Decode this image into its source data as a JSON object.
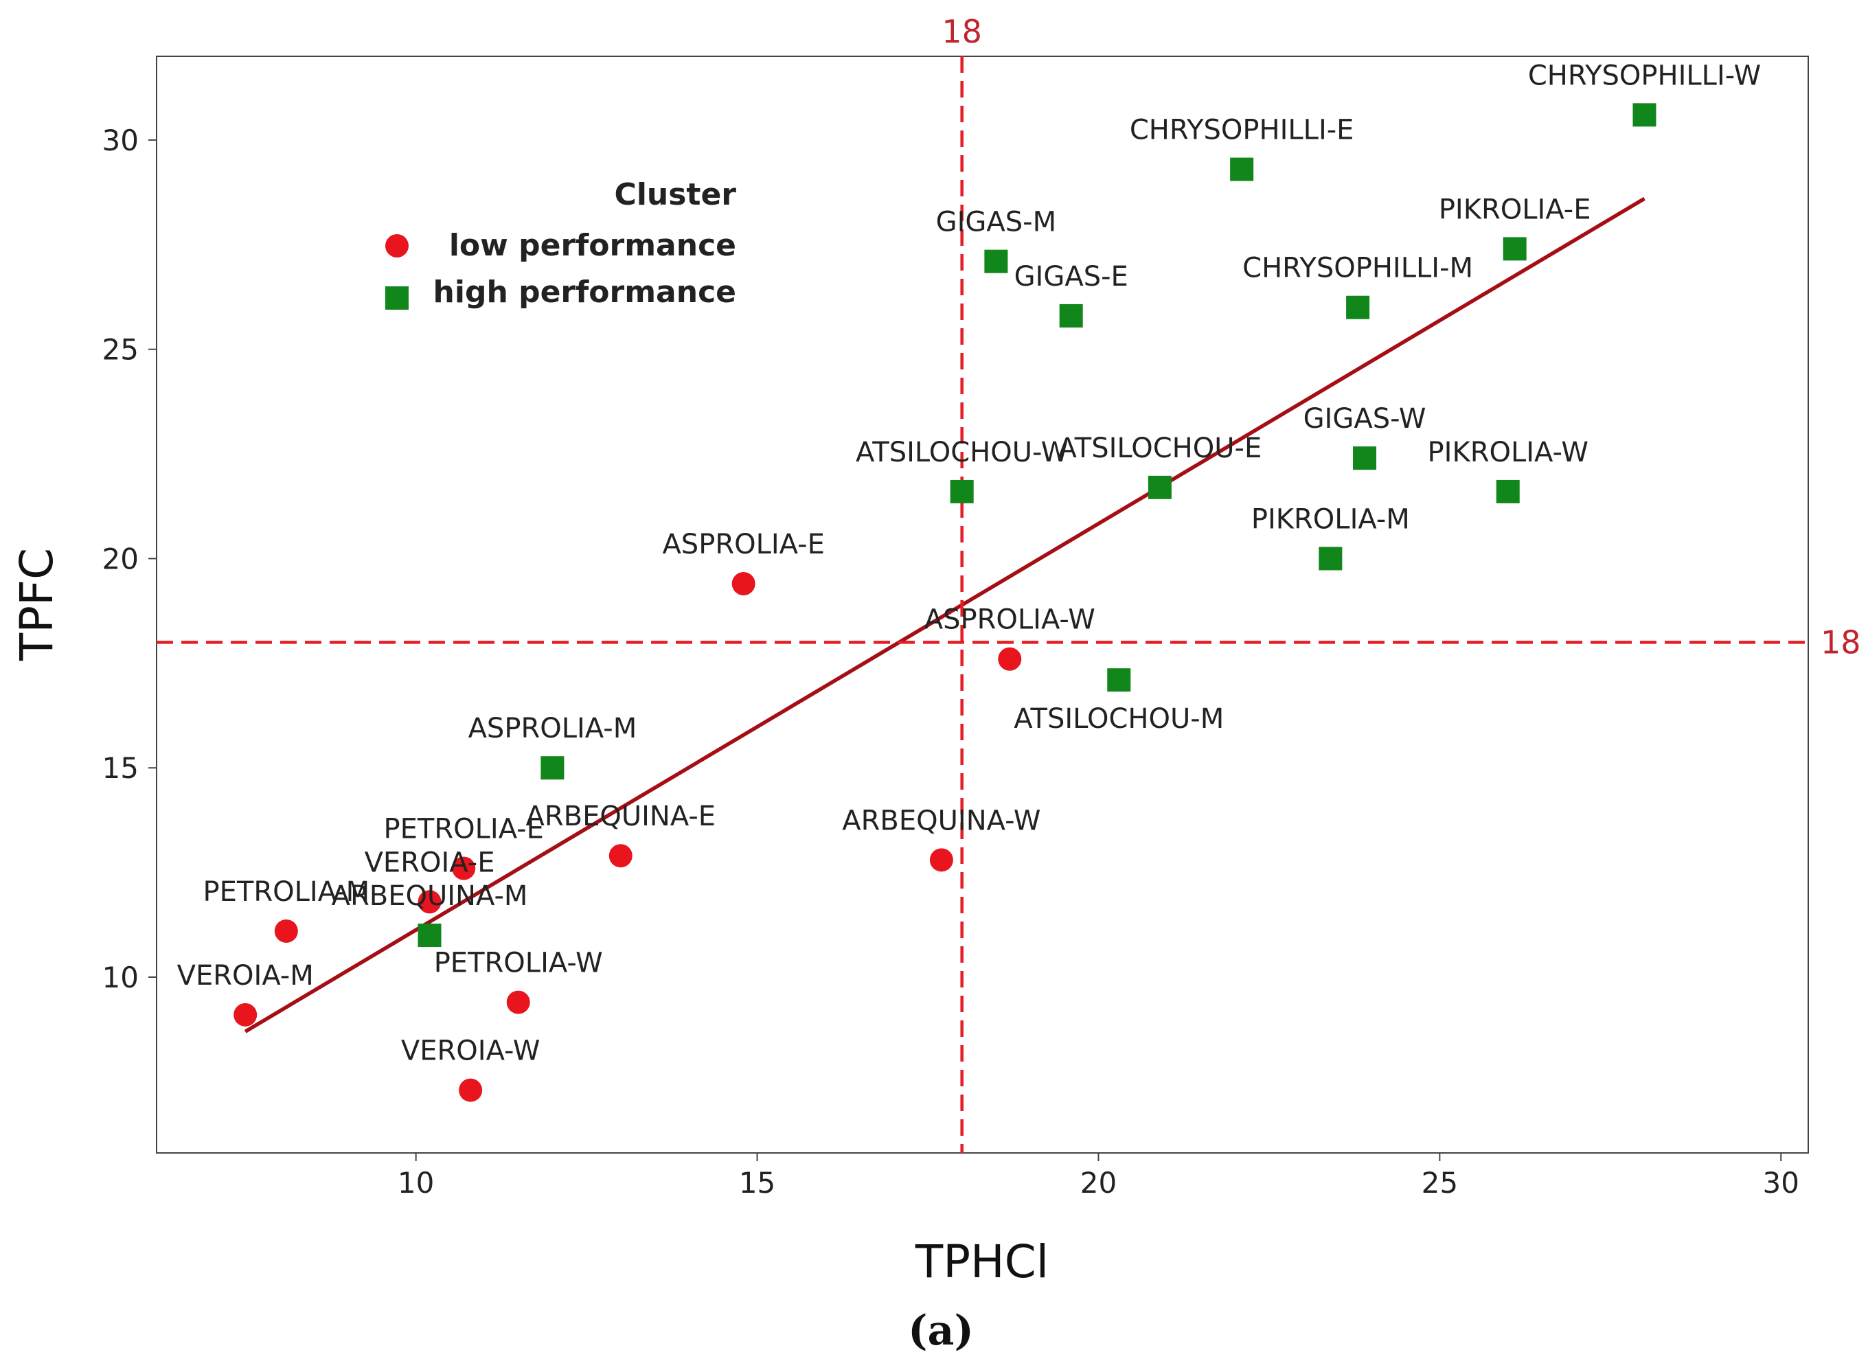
{
  "chart_data": {
    "type": "scatter",
    "xlabel": "TPHCl",
    "ylabel": "TPFC",
    "caption": "(a)",
    "xlim": [
      6.2,
      30.4
    ],
    "ylim": [
      5.8,
      32.0
    ],
    "xticks": [
      10,
      15,
      20,
      25,
      30
    ],
    "yticks": [
      10,
      15,
      20,
      25,
      30
    ],
    "grid": false,
    "legend": {
      "title": "Cluster",
      "position": "top-left",
      "entries": [
        {
          "key": "low",
          "label": "low performance"
        },
        {
          "key": "high",
          "label": "high performance"
        }
      ]
    },
    "colors": {
      "low": "#e8141e",
      "high": "#11861a",
      "ref_line": "#e51d24",
      "ref_label": "#c0242c",
      "fit_line": "#a50e14"
    },
    "reference_lines": {
      "x": 18,
      "y": 18,
      "x_label": "18",
      "y_label": "18"
    },
    "fit_line": {
      "x": [
        7.5,
        28.0
      ],
      "y": [
        8.7,
        28.6
      ]
    },
    "series": [
      {
        "name": "low performance",
        "marker": "circle",
        "points": [
          {
            "label": "VEROIA-M",
            "x": 7.5,
            "y": 9.1,
            "label_pos": "above"
          },
          {
            "label": "PETROLIA-M",
            "x": 8.1,
            "y": 11.1,
            "label_pos": "above"
          },
          {
            "label": "VEROIA-E",
            "x": 10.2,
            "y": 11.8,
            "label_pos": "above"
          },
          {
            "label": "PETROLIA-E",
            "x": 10.7,
            "y": 12.6,
            "label_pos": "above"
          },
          {
            "label": "VEROIA-W",
            "x": 10.8,
            "y": 7.3,
            "label_pos": "above"
          },
          {
            "label": "PETROLIA-W",
            "x": 11.5,
            "y": 9.4,
            "label_pos": "above"
          },
          {
            "label": "ARBEQUINA-E",
            "x": 13.0,
            "y": 12.9,
            "label_pos": "above"
          },
          {
            "label": "ASPROLIA-E",
            "x": 14.8,
            "y": 19.4,
            "label_pos": "above"
          },
          {
            "label": "ARBEQUINA-W",
            "x": 17.7,
            "y": 12.8,
            "label_pos": "above"
          },
          {
            "label": "ASPROLIA-W",
            "x": 18.7,
            "y": 17.6,
            "label_pos": "above"
          }
        ]
      },
      {
        "name": "high performance",
        "marker": "square",
        "points": [
          {
            "label": "ARBEQUINA-M",
            "x": 10.2,
            "y": 11.0,
            "label_pos": "above"
          },
          {
            "label": "ASPROLIA-M",
            "x": 12.0,
            "y": 15.0,
            "label_pos": "above"
          },
          {
            "label": "ATSILOCHOU-W",
            "x": 18.0,
            "y": 21.6,
            "label_pos": "above"
          },
          {
            "label": "GIGAS-M",
            "x": 18.5,
            "y": 27.1,
            "label_pos": "above"
          },
          {
            "label": "GIGAS-E",
            "x": 19.6,
            "y": 25.8,
            "label_pos": "above"
          },
          {
            "label": "ATSILOCHOU-M",
            "x": 20.3,
            "y": 17.1,
            "label_pos": "below"
          },
          {
            "label": "ATSILOCHOU-E",
            "x": 20.9,
            "y": 21.7,
            "label_pos": "above"
          },
          {
            "label": "CHRYSOPHILLI-E",
            "x": 22.1,
            "y": 29.3,
            "label_pos": "above"
          },
          {
            "label": "PIKROLIA-M",
            "x": 23.4,
            "y": 20.0,
            "label_pos": "above"
          },
          {
            "label": "CHRYSOPHILLI-M",
            "x": 23.8,
            "y": 26.0,
            "label_pos": "above"
          },
          {
            "label": "GIGAS-W",
            "x": 23.9,
            "y": 22.4,
            "label_pos": "above"
          },
          {
            "label": "PIKROLIA-W",
            "x": 26.0,
            "y": 21.6,
            "label_pos": "above"
          },
          {
            "label": "PIKROLIA-E",
            "x": 26.1,
            "y": 27.4,
            "label_pos": "above"
          },
          {
            "label": "CHRYSOPHILLI-W",
            "x": 28.0,
            "y": 30.6,
            "label_pos": "above"
          }
        ]
      }
    ]
  }
}
